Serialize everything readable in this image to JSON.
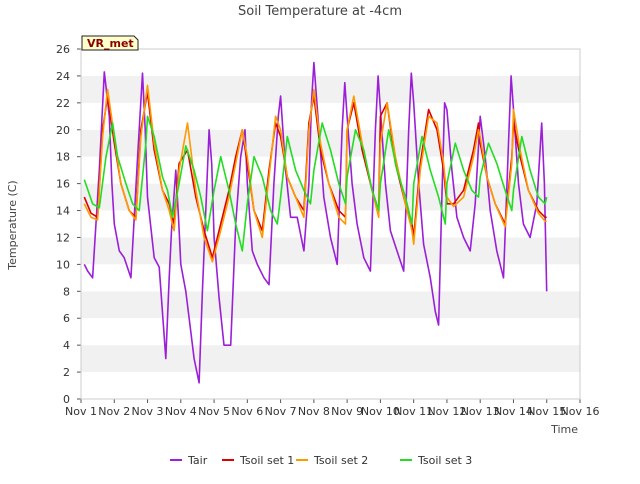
{
  "chart_data": {
    "type": "line",
    "title": "Soil Temperature at -4cm",
    "xlabel": "Time",
    "ylabel": "Temperature (C)",
    "badge": "VR_met",
    "xlim": [
      1,
      16
    ],
    "ylim": [
      0,
      26
    ],
    "x_ticks": [
      1,
      2,
      3,
      4,
      5,
      6,
      7,
      8,
      9,
      10,
      11,
      12,
      13,
      14,
      15,
      16
    ],
    "x_tick_labels": [
      "Nov 1",
      "Nov 2",
      "Nov 3",
      "Nov 4",
      "Nov 5",
      "Nov 6",
      "Nov 7",
      "Nov 8",
      "Nov 9",
      "Nov 10",
      "Nov 11",
      "Nov 12",
      "Nov 13",
      "Nov 14",
      "Nov 15",
      "Nov 16"
    ],
    "y_ticks": [
      0,
      2,
      4,
      6,
      8,
      10,
      12,
      14,
      16,
      18,
      20,
      22,
      24,
      26
    ],
    "grid": "horizontal bands",
    "legend_position": "bottom",
    "colors": {
      "Tair": "#9b1fd8",
      "Tsoil set 1": "#dd0000",
      "Tsoil set 2": "#ff9900",
      "Tsoil set 3": "#22dd22"
    },
    "series": [
      {
        "name": "Tair",
        "x": [
          1.1,
          1.2,
          1.35,
          1.55,
          1.7,
          1.85,
          1.93,
          2.0,
          2.15,
          2.3,
          2.5,
          2.7,
          2.85,
          2.93,
          3.0,
          3.2,
          3.35,
          3.55,
          3.65,
          3.72,
          3.85,
          3.93,
          4.0,
          4.15,
          4.3,
          4.4,
          4.55,
          4.65,
          4.75,
          4.85,
          4.93,
          5.0,
          5.15,
          5.3,
          5.5,
          5.65,
          5.8,
          5.93,
          6.0,
          6.15,
          6.3,
          6.5,
          6.65,
          6.8,
          6.93,
          7.0,
          7.15,
          7.3,
          7.5,
          7.7,
          7.85,
          7.93,
          8.0,
          8.15,
          8.3,
          8.5,
          8.7,
          8.85,
          8.93,
          9.0,
          9.15,
          9.3,
          9.5,
          9.7,
          9.85,
          9.93,
          10.0,
          10.15,
          10.3,
          10.5,
          10.7,
          10.85,
          10.93,
          11.0,
          11.15,
          11.3,
          11.5,
          11.65,
          11.75,
          11.85,
          11.93,
          12.0,
          12.15,
          12.3,
          12.5,
          12.7,
          12.85,
          12.93,
          13.0,
          13.15,
          13.3,
          13.5,
          13.7,
          13.85,
          13.93,
          14.0,
          14.15,
          14.3,
          14.5,
          14.7,
          14.85,
          14.93,
          15.0
        ],
        "values": [
          10.0,
          9.5,
          9.0,
          17.0,
          24.3,
          21.0,
          16.0,
          13.0,
          11.0,
          10.5,
          9.0,
          18.0,
          24.2,
          20.0,
          15.0,
          10.5,
          9.8,
          3.0,
          9.0,
          12.5,
          17.0,
          13.5,
          10.0,
          8.0,
          5.0,
          3.0,
          1.2,
          8.0,
          14.0,
          20.0,
          17.5,
          12.0,
          7.5,
          4.0,
          4.0,
          13.0,
          18.0,
          20.0,
          16.0,
          11.0,
          10.0,
          9.0,
          8.5,
          16.0,
          21.0,
          22.5,
          17.0,
          13.5,
          13.5,
          11.0,
          16.0,
          22.0,
          25.0,
          20.0,
          15.0,
          12.0,
          10.0,
          20.0,
          23.5,
          21.0,
          16.0,
          13.0,
          10.5,
          9.5,
          20.0,
          24.0,
          21.5,
          16.0,
          12.5,
          11.0,
          9.5,
          20.0,
          24.2,
          22.0,
          16.0,
          11.5,
          9.0,
          6.5,
          5.5,
          15.0,
          22.0,
          21.5,
          17.0,
          13.5,
          12.0,
          11.0,
          14.5,
          18.0,
          21.0,
          18.0,
          14.0,
          11.0,
          9.0,
          19.0,
          24.0,
          21.5,
          16.0,
          13.0,
          12.0,
          14.5,
          20.5,
          16.0,
          8.0
        ]
      },
      {
        "name": "Tsoil set 1",
        "x": [
          1.1,
          1.3,
          1.5,
          1.65,
          1.8,
          2.0,
          2.2,
          2.45,
          2.65,
          2.8,
          3.0,
          3.2,
          3.45,
          3.65,
          3.8,
          3.95,
          4.2,
          4.45,
          4.7,
          4.95,
          5.2,
          5.45,
          5.65,
          5.85,
          6.0,
          6.2,
          6.45,
          6.65,
          6.85,
          7.0,
          7.2,
          7.45,
          7.7,
          7.85,
          8.0,
          8.2,
          8.45,
          8.75,
          8.95,
          9.0,
          9.2,
          9.45,
          9.75,
          9.95,
          10.0,
          10.2,
          10.45,
          10.75,
          10.95,
          11.0,
          11.2,
          11.45,
          11.7,
          11.9,
          12.0,
          12.2,
          12.5,
          12.8,
          12.95,
          13.0,
          13.2,
          13.45,
          13.75,
          13.95,
          14.0,
          14.2,
          14.45,
          14.75,
          14.95,
          15.0
        ],
        "values": [
          15.0,
          13.8,
          13.5,
          20.0,
          22.5,
          19.0,
          16.0,
          14.0,
          13.5,
          20.0,
          22.8,
          18.5,
          15.5,
          14.5,
          13.0,
          17.5,
          18.5,
          15.0,
          12.5,
          10.5,
          13.0,
          15.5,
          18.0,
          20.0,
          17.5,
          14.0,
          12.5,
          17.0,
          20.5,
          19.5,
          16.5,
          15.0,
          14.0,
          20.5,
          22.5,
          18.5,
          16.0,
          14.0,
          13.5,
          20.0,
          22.0,
          18.5,
          15.5,
          14.0,
          21.0,
          22.0,
          17.5,
          14.5,
          13.0,
          12.0,
          17.5,
          21.5,
          20.0,
          17.0,
          14.5,
          14.5,
          15.5,
          18.5,
          20.5,
          19.0,
          16.5,
          14.5,
          13.0,
          18.0,
          20.5,
          18.0,
          15.5,
          14.0,
          13.5,
          13.5
        ]
      },
      {
        "name": "Tsoil set 2",
        "x": [
          1.1,
          1.3,
          1.5,
          1.65,
          1.8,
          2.0,
          2.2,
          2.45,
          2.65,
          2.8,
          3.0,
          3.2,
          3.45,
          3.65,
          3.8,
          3.95,
          4.2,
          4.45,
          4.7,
          4.95,
          5.2,
          5.45,
          5.65,
          5.85,
          6.0,
          6.2,
          6.45,
          6.65,
          6.85,
          7.0,
          7.2,
          7.45,
          7.7,
          7.85,
          8.0,
          8.2,
          8.45,
          8.75,
          8.95,
          9.0,
          9.2,
          9.45,
          9.75,
          9.95,
          10.0,
          10.2,
          10.45,
          10.75,
          10.95,
          11.0,
          11.2,
          11.45,
          11.7,
          11.9,
          12.0,
          12.2,
          12.5,
          12.8,
          12.95,
          13.0,
          13.2,
          13.45,
          13.75,
          13.95,
          14.0,
          14.2,
          14.45,
          14.75,
          14.95,
          15.0
        ],
        "values": [
          14.5,
          13.5,
          13.3,
          19.5,
          23.0,
          19.5,
          16.0,
          14.0,
          13.3,
          19.5,
          23.3,
          19.0,
          15.5,
          14.0,
          12.5,
          17.0,
          20.5,
          15.5,
          12.0,
          10.2,
          12.5,
          15.0,
          17.5,
          20.0,
          18.0,
          14.0,
          12.0,
          16.5,
          21.0,
          20.0,
          16.5,
          15.0,
          13.5,
          20.0,
          23.0,
          19.0,
          16.0,
          13.5,
          13.0,
          20.0,
          22.5,
          19.0,
          15.5,
          13.5,
          19.0,
          22.0,
          18.0,
          14.5,
          12.5,
          11.5,
          17.0,
          21.0,
          20.5,
          17.5,
          15.0,
          14.3,
          15.0,
          18.0,
          20.0,
          19.5,
          16.5,
          14.5,
          12.8,
          17.5,
          21.5,
          18.5,
          15.5,
          13.8,
          13.2,
          13.2
        ]
      },
      {
        "name": "Tsoil set 3",
        "x": [
          1.1,
          1.35,
          1.55,
          1.75,
          1.95,
          2.1,
          2.35,
          2.55,
          2.75,
          2.95,
          3.0,
          3.2,
          3.45,
          3.6,
          3.75,
          3.95,
          4.15,
          4.4,
          4.6,
          4.8,
          5.0,
          5.2,
          5.45,
          5.65,
          5.85,
          6.0,
          6.2,
          6.45,
          6.7,
          6.9,
          7.0,
          7.2,
          7.45,
          7.7,
          7.9,
          8.0,
          8.25,
          8.5,
          8.75,
          8.95,
          9.0,
          9.25,
          9.5,
          9.75,
          9.95,
          10.0,
          10.25,
          10.5,
          10.75,
          10.95,
          11.0,
          11.25,
          11.5,
          11.75,
          11.95,
          12.0,
          12.25,
          12.5,
          12.75,
          12.95,
          13.0,
          13.25,
          13.5,
          13.75,
          13.95,
          14.0,
          14.25,
          14.5,
          14.75,
          14.95,
          15.0
        ],
        "values": [
          16.3,
          14.5,
          14.2,
          18.0,
          20.5,
          18.0,
          16.0,
          14.5,
          14.0,
          19.0,
          21.0,
          19.5,
          16.5,
          15.5,
          13.5,
          16.0,
          18.8,
          17.0,
          15.0,
          12.5,
          15.5,
          18.0,
          15.5,
          13.0,
          11.0,
          14.5,
          18.0,
          16.5,
          14.0,
          13.0,
          15.0,
          19.5,
          17.0,
          15.5,
          14.5,
          17.0,
          20.5,
          18.5,
          16.0,
          14.5,
          16.5,
          20.0,
          18.5,
          15.5,
          14.0,
          16.0,
          20.0,
          17.0,
          15.0,
          13.0,
          16.0,
          19.5,
          17.0,
          15.0,
          13.0,
          16.0,
          19.0,
          17.0,
          15.5,
          15.0,
          16.5,
          19.0,
          17.5,
          15.5,
          14.0,
          15.5,
          19.5,
          17.0,
          15.0,
          14.5,
          15.0
        ]
      }
    ]
  }
}
